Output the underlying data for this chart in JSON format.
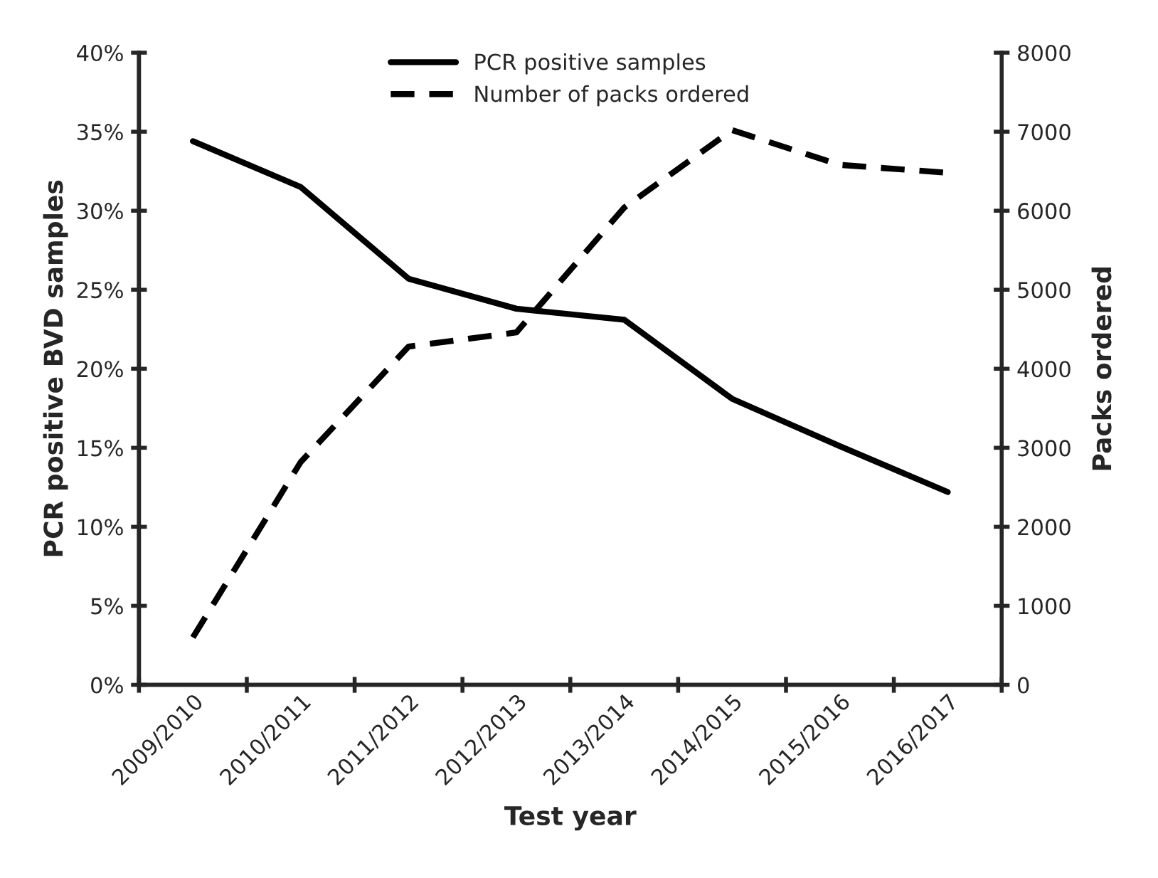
{
  "chart_data": {
    "type": "line",
    "xlabel": "Test year",
    "ylabel": "PCR positive BVD samples",
    "y2label": "Packs ordered",
    "categories": [
      "2009/2010",
      "2010/2011",
      "2011/2012",
      "2012/2013",
      "2013/2014",
      "2014/2015",
      "2015/2016",
      "2016/2017"
    ],
    "series": [
      {
        "name": "PCR positive samples",
        "color": "#000000",
        "line_style": "solid",
        "values": [
          34.4,
          31.5,
          25.7,
          23.8,
          23.1,
          18.1,
          15.1,
          12.2
        ]
      },
      {
        "name": "Number of packs ordered",
        "color": "#000000",
        "line_style": "dashed",
        "axis": "y2",
        "values": [
          600,
          2820,
          4280,
          4460,
          6040,
          7020,
          6580,
          6480
        ]
      }
    ],
    "ylim": [
      0,
      40
    ],
    "yticks": [
      {
        "value": 0,
        "label": "0%"
      },
      {
        "value": 5,
        "label": "5%"
      },
      {
        "value": 10,
        "label": "10%"
      },
      {
        "value": 15,
        "label": "15%"
      },
      {
        "value": 20,
        "label": "20%"
      },
      {
        "value": 25,
        "label": "25%"
      },
      {
        "value": 30,
        "label": "30%"
      },
      {
        "value": 35,
        "label": "35%"
      },
      {
        "value": 40,
        "label": "40%"
      }
    ],
    "y2lim": [
      0,
      8000
    ],
    "y2ticks": [
      0,
      1000,
      2000,
      3000,
      4000,
      5000,
      6000,
      7000,
      8000
    ],
    "grid": false,
    "legend": "top"
  }
}
